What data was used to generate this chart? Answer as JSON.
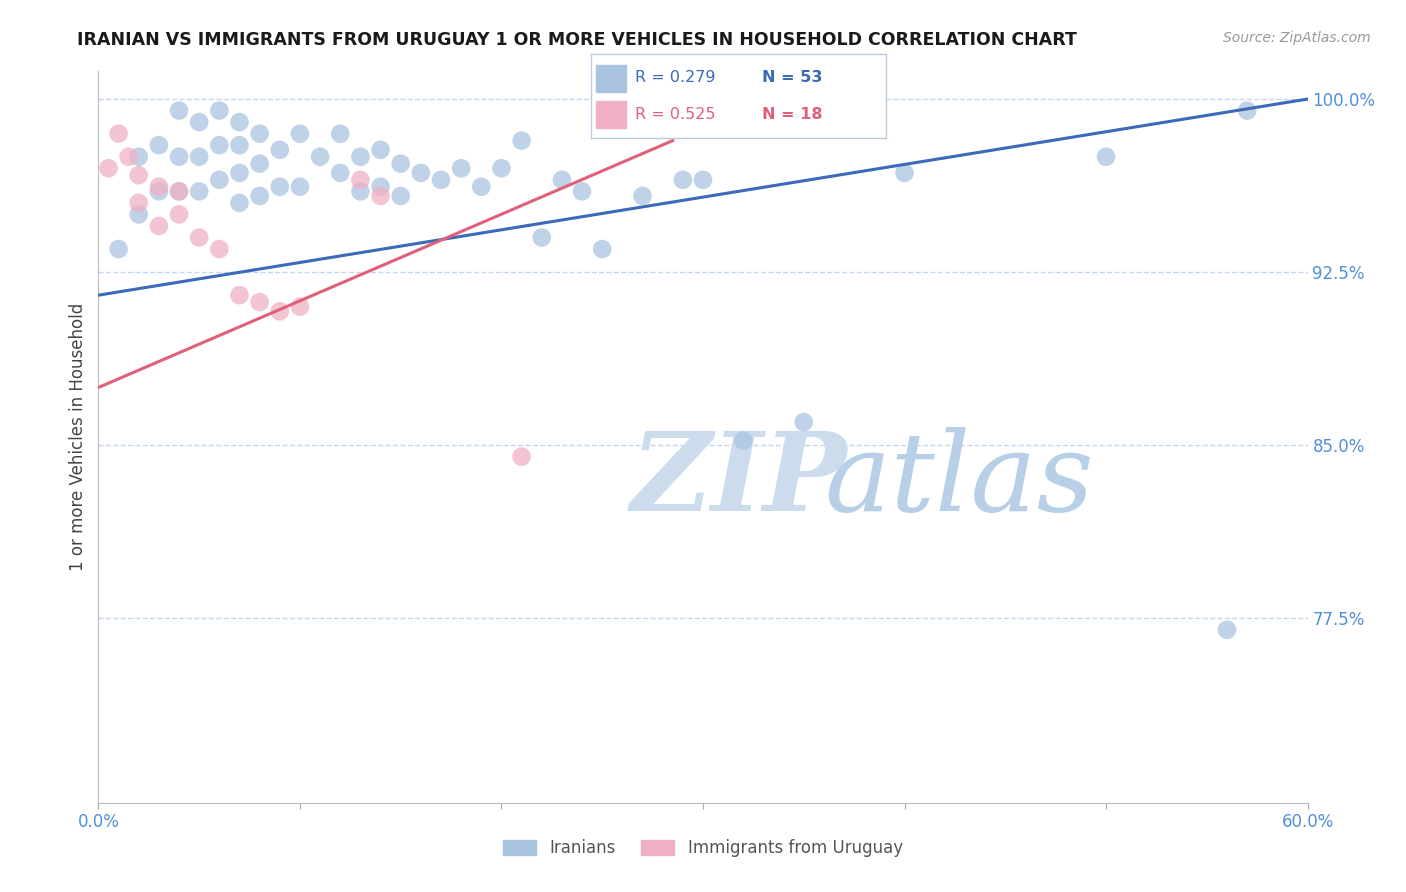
{
  "title": "IRANIAN VS IMMIGRANTS FROM URUGUAY 1 OR MORE VEHICLES IN HOUSEHOLD CORRELATION CHART",
  "source": "Source: ZipAtlas.com",
  "ylabel": "1 or more Vehicles in Household",
  "xmin": 0.0,
  "xmax": 0.6,
  "ymin": 0.695,
  "ymax": 1.012,
  "yticks": [
    0.775,
    0.85,
    0.925,
    1.0
  ],
  "ytick_labels": [
    "77.5%",
    "85.0%",
    "92.5%",
    "100.0%"
  ],
  "xticks": [
    0.0,
    0.1,
    0.2,
    0.3,
    0.4,
    0.5,
    0.6
  ],
  "legend_blue_r": "R = 0.279",
  "legend_blue_n": "N = 53",
  "legend_pink_r": "R = 0.525",
  "legend_pink_n": "N = 18",
  "legend_label_blue": "Iranians",
  "legend_label_pink": "Immigrants from Uruguay",
  "blue_color": "#aac4e0",
  "pink_color": "#f0b0c4",
  "blue_line_color": "#3a6ab8",
  "pink_line_color": "#e0607a",
  "tick_color": "#5090d8",
  "grid_color": "#c5d8ec",
  "watermark_zip_color": "#ccdcec",
  "watermark_atlas_color": "#b8cfe8",
  "blue_scatter_x": [
    0.01,
    0.02,
    0.02,
    0.03,
    0.03,
    0.04,
    0.04,
    0.04,
    0.05,
    0.05,
    0.05,
    0.06,
    0.06,
    0.06,
    0.07,
    0.07,
    0.07,
    0.07,
    0.08,
    0.08,
    0.08,
    0.09,
    0.09,
    0.1,
    0.1,
    0.11,
    0.12,
    0.12,
    0.13,
    0.13,
    0.14,
    0.14,
    0.15,
    0.15,
    0.16,
    0.17,
    0.18,
    0.19,
    0.2,
    0.21,
    0.22,
    0.23,
    0.24,
    0.25,
    0.27,
    0.29,
    0.3,
    0.32,
    0.35,
    0.4,
    0.5,
    0.56,
    0.57
  ],
  "blue_scatter_y": [
    0.935,
    0.975,
    0.95,
    0.98,
    0.96,
    0.995,
    0.975,
    0.96,
    0.99,
    0.975,
    0.96,
    0.995,
    0.98,
    0.965,
    0.99,
    0.98,
    0.968,
    0.955,
    0.985,
    0.972,
    0.958,
    0.978,
    0.962,
    0.985,
    0.962,
    0.975,
    0.985,
    0.968,
    0.975,
    0.96,
    0.978,
    0.962,
    0.972,
    0.958,
    0.968,
    0.965,
    0.97,
    0.962,
    0.97,
    0.982,
    0.94,
    0.965,
    0.96,
    0.935,
    0.958,
    0.965,
    0.965,
    0.852,
    0.86,
    0.968,
    0.975,
    0.77,
    0.995
  ],
  "blue_line_x": [
    0.0,
    0.6
  ],
  "blue_line_y": [
    0.915,
    1.0
  ],
  "pink_scatter_x": [
    0.005,
    0.01,
    0.015,
    0.02,
    0.02,
    0.03,
    0.03,
    0.04,
    0.04,
    0.05,
    0.06,
    0.07,
    0.08,
    0.09,
    0.1,
    0.13,
    0.14,
    0.21
  ],
  "pink_scatter_y": [
    0.97,
    0.985,
    0.975,
    0.967,
    0.955,
    0.962,
    0.945,
    0.96,
    0.95,
    0.94,
    0.935,
    0.915,
    0.912,
    0.908,
    0.91,
    0.965,
    0.958,
    0.845
  ],
  "pink_line_x": [
    0.0,
    0.285
  ],
  "pink_line_y": [
    0.875,
    0.982
  ]
}
